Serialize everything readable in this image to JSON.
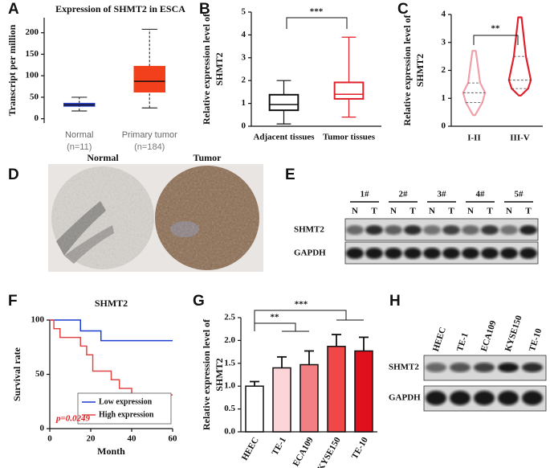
{
  "chart_data": [
    {
      "panel": "A",
      "type": "box",
      "title": "Expression of SHMT2 in ESCA",
      "ylabel": [
        "Transcript per million"
      ],
      "categories": [
        "Normal",
        "Primary tumor"
      ],
      "category_notes": [
        "(n=11)",
        "(n=184)"
      ],
      "boxes": [
        {
          "color": "#2b3fbf",
          "min": 18,
          "q1": 29,
          "median": 32,
          "q3": 36,
          "max": 50
        },
        {
          "color": "#f2401c",
          "min": 25,
          "q1": 62,
          "median": 87,
          "q3": 122,
          "max": 208
        }
      ],
      "box_fill": true,
      "whisker_style": "dashed",
      "ylim": [
        -10,
        235
      ],
      "yticks": [
        0,
        50,
        100,
        150,
        200
      ]
    },
    {
      "panel": "B",
      "type": "box",
      "ylabel": [
        "Relative expression level of",
        "SHMT2"
      ],
      "categories": [
        "Adjacent tissues",
        "Tumor tissues"
      ],
      "boxes": [
        {
          "color": "#111111",
          "min": 0.1,
          "q1": 0.7,
          "median": 0.95,
          "q3": 1.38,
          "max": 2.0
        },
        {
          "color": "#e0202a",
          "min": 0.4,
          "q1": 1.2,
          "median": 1.4,
          "q3": 1.92,
          "max": 3.9
        }
      ],
      "box_fill": false,
      "whisker_style": "solid",
      "ylim": [
        0,
        5
      ],
      "yticks": [
        0,
        1,
        2,
        3,
        4,
        5
      ],
      "annotations": [
        "***"
      ]
    },
    {
      "panel": "C",
      "type": "violin",
      "ylabel": [
        "Relative expression level of",
        "SHMT2"
      ],
      "categories": [
        "I-II",
        "III-V"
      ],
      "violins": [
        {
          "color": "#f0a0a8",
          "min": 0.4,
          "q1": 0.85,
          "median": 1.2,
          "q3": 1.55,
          "max": 2.7
        },
        {
          "color": "#e0202a",
          "min": 1.1,
          "q1": 1.35,
          "median": 1.65,
          "q3": 2.5,
          "max": 3.9
        }
      ],
      "ylim": [
        0,
        4
      ],
      "yticks": [
        0,
        1,
        2,
        3,
        4
      ],
      "annotations": [
        "**"
      ]
    },
    {
      "panel": "F",
      "type": "step",
      "title": "SHMT2",
      "ylabel": [
        "Survival rate"
      ],
      "xlabel": "Month",
      "series": [
        {
          "name": "Low expression",
          "color": "#1f3fd0",
          "x": [
            0,
            15,
            25,
            60
          ],
          "values": [
            100,
            90,
            81,
            81
          ]
        },
        {
          "name": "High expression",
          "color": "#e04848",
          "x": [
            0,
            2,
            5,
            15,
            18,
            21,
            30,
            34,
            40,
            60
          ],
          "values": [
            100,
            92,
            84,
            76,
            68,
            53,
            45,
            37,
            31,
            31
          ]
        }
      ],
      "xlim": [
        0,
        60
      ],
      "xticks": [
        0,
        20,
        40,
        60
      ],
      "ylim": [
        0,
        100
      ],
      "yticks": [
        0,
        50,
        100
      ],
      "annotations": [
        "p=0.0249"
      ],
      "legend": "lower right"
    },
    {
      "panel": "G",
      "type": "bar",
      "ylabel": [
        "Relative expression level of",
        "SHMT2"
      ],
      "categories": [
        "HEEC",
        "TE-1",
        "ECA109",
        "KYSE150",
        "TE-10"
      ],
      "values": [
        1.0,
        1.4,
        1.47,
        1.87,
        1.77
      ],
      "errors": [
        0.1,
        0.24,
        0.3,
        0.26,
        0.3
      ],
      "colors": [
        "#ffffff",
        "#fcd5d8",
        "#f27f84",
        "#f04848",
        "#e0101c"
      ],
      "ylim": [
        0,
        2.5
      ],
      "yticks": [
        {
          "value": 0,
          "label": "0.0"
        },
        {
          "value": 0.5,
          "label": "0.5"
        },
        {
          "value": 1,
          "label": "1.0"
        },
        {
          "value": 1.5,
          "label": "1.5"
        },
        {
          "value": 2,
          "label": "2.0"
        },
        {
          "value": 2.5,
          "label": "2.5"
        }
      ],
      "annotations": [
        "**",
        "***"
      ]
    }
  ],
  "ihc": {
    "panel": "D",
    "labels": [
      "Normal",
      "Tumor"
    ]
  },
  "blot_e": {
    "panel": "E",
    "lanes": [
      "1#",
      "2#",
      "3#",
      "4#",
      "5#"
    ],
    "sublanes": [
      "N",
      "T",
      "N",
      "T",
      "N",
      "T",
      "N",
      "T",
      "N",
      "T"
    ],
    "rows": [
      "SHMT2",
      "GAPDH"
    ]
  },
  "blot_h": {
    "panel": "H",
    "lanes": [
      "HEEC",
      "TE-1",
      "ECA109",
      "KYSE150",
      "TE-10"
    ],
    "rows": [
      "SHMT2",
      "GAPDH"
    ]
  }
}
